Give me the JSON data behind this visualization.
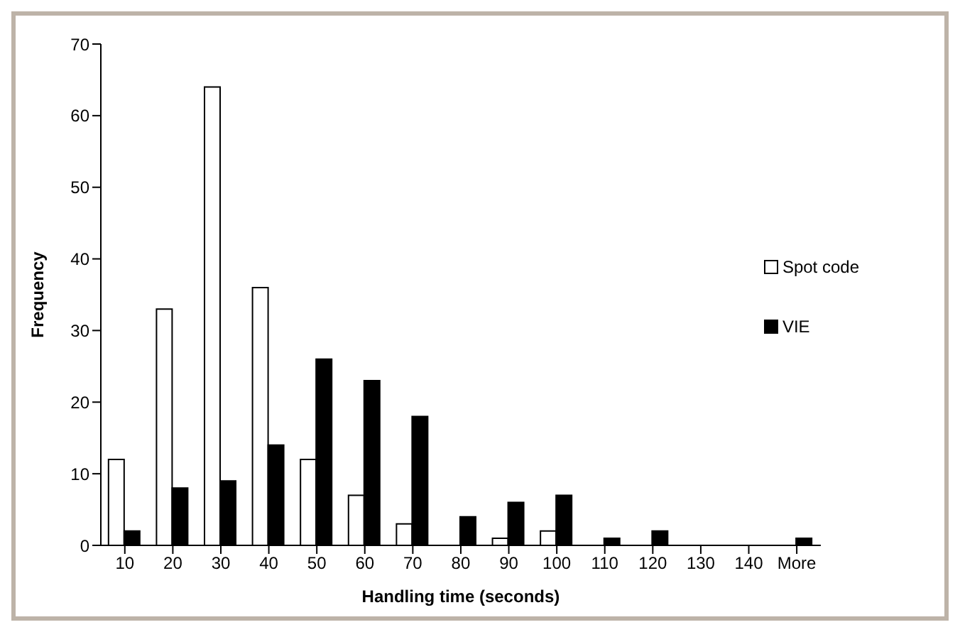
{
  "chart_data": {
    "type": "bar",
    "xlabel": "Handling time (seconds)",
    "ylabel": "Frequency",
    "categories": [
      "10",
      "20",
      "30",
      "40",
      "50",
      "60",
      "70",
      "80",
      "90",
      "100",
      "110",
      "120",
      "130",
      "140",
      "More"
    ],
    "series": [
      {
        "name": "Spot code",
        "color": "#ffffff",
        "values": [
          12,
          33,
          64,
          36,
          12,
          7,
          3,
          0,
          1,
          2,
          0,
          0,
          0,
          0,
          0
        ]
      },
      {
        "name": "VIE",
        "color": "#000000",
        "values": [
          2,
          8,
          9,
          14,
          26,
          23,
          18,
          4,
          6,
          7,
          1,
          2,
          0,
          0,
          1
        ]
      }
    ],
    "ylim": [
      0,
      70
    ],
    "yticks": [
      0,
      10,
      20,
      30,
      40,
      50,
      60,
      70
    ],
    "grid": false,
    "legend": "right"
  }
}
